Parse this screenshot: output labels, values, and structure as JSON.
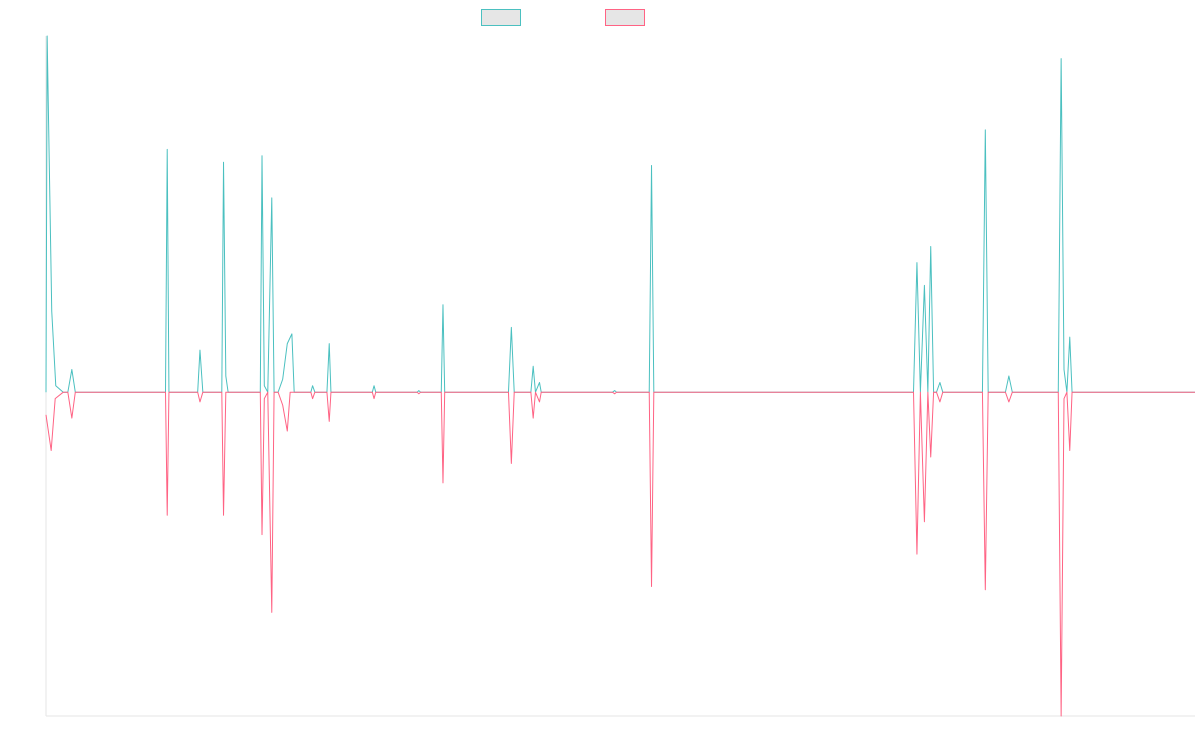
{
  "colors": {
    "series_up": "#4bc0c0",
    "series_down": "#ff6384",
    "legend_fill": "#e6e6e6",
    "axis": "#e5e5e5"
  },
  "chart_data": {
    "type": "line",
    "title": "",
    "xlabel": "",
    "ylabel": "",
    "grid": false,
    "legend": "top-center",
    "ylim": [
      -1,
      1.1
    ],
    "xlim": [
      0,
      200
    ],
    "series": [
      {
        "color": "#4bc0c0",
        "points": [
          [
            0,
            0
          ],
          [
            0.2,
            1.1
          ],
          [
            1.0,
            0.25
          ],
          [
            1.7,
            0.02
          ],
          [
            3,
            0
          ],
          [
            3.8,
            0
          ],
          [
            4.5,
            0.07
          ],
          [
            5.1,
            0
          ],
          [
            20.8,
            0
          ],
          [
            21.1,
            0.75
          ],
          [
            21.4,
            0
          ],
          [
            26.4,
            0
          ],
          [
            26.8,
            0.13
          ],
          [
            27.3,
            0
          ],
          [
            30.6,
            0
          ],
          [
            30.9,
            0.71
          ],
          [
            31.3,
            0.05
          ],
          [
            31.7,
            0
          ],
          [
            37.3,
            0
          ],
          [
            37.6,
            0.73
          ],
          [
            38.0,
            0.02
          ],
          [
            38.6,
            0
          ],
          [
            39.3,
            0.6
          ],
          [
            39.7,
            0
          ],
          [
            40.4,
            0
          ],
          [
            41.2,
            0.04
          ],
          [
            42.0,
            0.15
          ],
          [
            42.8,
            0.18
          ],
          [
            43.2,
            0
          ],
          [
            46.1,
            0
          ],
          [
            46.4,
            0.02
          ],
          [
            46.8,
            0
          ],
          [
            48.9,
            0
          ],
          [
            49.3,
            0.15
          ],
          [
            49.6,
            0
          ],
          [
            56.8,
            0
          ],
          [
            57.1,
            0.02
          ],
          [
            57.4,
            0
          ],
          [
            64.6,
            0
          ],
          [
            64.9,
            0.005
          ],
          [
            65.2,
            0
          ],
          [
            68.8,
            0
          ],
          [
            69.1,
            0.27
          ],
          [
            69.4,
            0
          ],
          [
            80.5,
            0
          ],
          [
            81.0,
            0.2
          ],
          [
            81.5,
            0
          ],
          [
            84.4,
            0
          ],
          [
            84.8,
            0.08
          ],
          [
            85.2,
            0
          ],
          [
            85.9,
            0.03
          ],
          [
            86.2,
            0
          ],
          [
            98.6,
            0
          ],
          [
            99.0,
            0.005
          ],
          [
            99.3,
            0
          ],
          [
            105.0,
            0
          ],
          [
            105.4,
            0.7
          ],
          [
            105.8,
            0
          ],
          [
            151.0,
            0
          ],
          [
            151.6,
            0.4
          ],
          [
            152.2,
            0
          ],
          [
            152.9,
            0.33
          ],
          [
            153.5,
            0
          ],
          [
            154.0,
            0.45
          ],
          [
            154.5,
            0
          ],
          [
            155.0,
            0
          ],
          [
            155.6,
            0.03
          ],
          [
            156.1,
            0
          ],
          [
            163.0,
            0
          ],
          [
            163.5,
            0.81
          ],
          [
            164.0,
            0
          ],
          [
            167.0,
            0
          ],
          [
            167.6,
            0.05
          ],
          [
            168.2,
            0
          ],
          [
            176.2,
            0
          ],
          [
            176.7,
            1.03
          ],
          [
            177.2,
            0.07
          ],
          [
            177.7,
            0
          ],
          [
            178.2,
            0.17
          ],
          [
            178.6,
            0
          ],
          [
            200,
            0
          ]
        ]
      },
      {
        "color": "#ff6384",
        "points": [
          [
            0,
            -0.07
          ],
          [
            0.9,
            -0.18
          ],
          [
            1.6,
            -0.02
          ],
          [
            3,
            0
          ],
          [
            3.8,
            0
          ],
          [
            4.5,
            -0.08
          ],
          [
            5.1,
            0
          ],
          [
            20.8,
            0
          ],
          [
            21.1,
            -0.38
          ],
          [
            21.4,
            0
          ],
          [
            26.4,
            0
          ],
          [
            26.8,
            -0.03
          ],
          [
            27.3,
            0
          ],
          [
            30.6,
            0
          ],
          [
            30.9,
            -0.38
          ],
          [
            31.3,
            0
          ],
          [
            37.3,
            0
          ],
          [
            37.6,
            -0.44
          ],
          [
            38.0,
            -0.02
          ],
          [
            38.6,
            0
          ],
          [
            39.3,
            -0.68
          ],
          [
            39.7,
            0
          ],
          [
            40.4,
            0
          ],
          [
            41.2,
            -0.04
          ],
          [
            42.0,
            -0.12
          ],
          [
            42.5,
            0
          ],
          [
            46.1,
            0
          ],
          [
            46.4,
            -0.02
          ],
          [
            46.8,
            0
          ],
          [
            48.9,
            0
          ],
          [
            49.3,
            -0.09
          ],
          [
            49.6,
            0
          ],
          [
            56.8,
            0
          ],
          [
            57.1,
            -0.02
          ],
          [
            57.4,
            0
          ],
          [
            64.6,
            0
          ],
          [
            64.9,
            -0.005
          ],
          [
            65.2,
            0
          ],
          [
            68.8,
            0
          ],
          [
            69.1,
            -0.28
          ],
          [
            69.4,
            0
          ],
          [
            80.5,
            0
          ],
          [
            81.0,
            -0.22
          ],
          [
            81.5,
            0
          ],
          [
            84.4,
            0
          ],
          [
            84.8,
            -0.08
          ],
          [
            85.2,
            0
          ],
          [
            85.9,
            -0.03
          ],
          [
            86.2,
            0
          ],
          [
            98.6,
            0
          ],
          [
            99.0,
            -0.005
          ],
          [
            99.3,
            0
          ],
          [
            105.0,
            0
          ],
          [
            105.4,
            -0.6
          ],
          [
            105.8,
            0
          ],
          [
            151.0,
            0
          ],
          [
            151.6,
            -0.5
          ],
          [
            152.2,
            0
          ],
          [
            152.9,
            -0.4
          ],
          [
            153.5,
            0
          ],
          [
            154.0,
            -0.2
          ],
          [
            154.5,
            0
          ],
          [
            155.0,
            0
          ],
          [
            155.6,
            -0.03
          ],
          [
            156.1,
            0
          ],
          [
            163.0,
            0
          ],
          [
            163.5,
            -0.61
          ],
          [
            164.0,
            0
          ],
          [
            167.0,
            0
          ],
          [
            167.6,
            -0.03
          ],
          [
            168.2,
            0
          ],
          [
            176.2,
            0
          ],
          [
            176.7,
            -1.0
          ],
          [
            177.2,
            -0.02
          ],
          [
            177.7,
            0
          ],
          [
            178.2,
            -0.18
          ],
          [
            178.6,
            0
          ],
          [
            200,
            0
          ]
        ]
      }
    ]
  }
}
